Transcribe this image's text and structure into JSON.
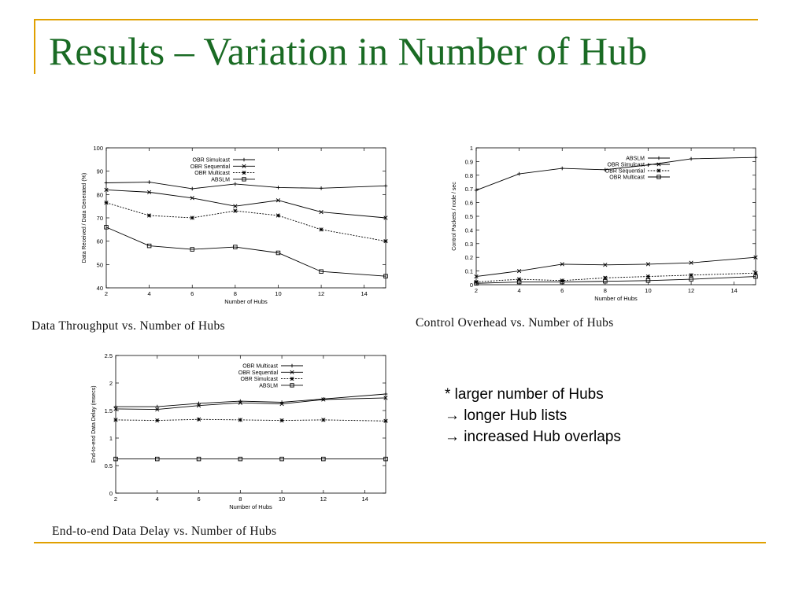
{
  "slide": {
    "title": "Results – Variation in Number of Hub",
    "notes": [
      "* larger number of Hubs",
      "→ longer Hub lists",
      "→ increased Hub overlaps"
    ]
  },
  "chart_data": [
    {
      "type": "line",
      "caption": "Data Throughput vs. Number of Hubs",
      "xlabel": "Number of Hubs",
      "ylabel": "Data Received / Data Generated (%)",
      "xlim": [
        2,
        15
      ],
      "ylim": [
        40,
        100
      ],
      "xticks": [
        "2",
        "4",
        "6",
        "8",
        "10",
        "12",
        "14"
      ],
      "yticks": [
        "40",
        "50",
        "60",
        "70",
        "80",
        "90",
        "100"
      ],
      "legend_position": "top-right",
      "x": [
        2,
        4,
        6,
        8,
        10,
        12,
        15
      ],
      "series": [
        {
          "name": "OBR Simulcast",
          "marker": "plus",
          "dash": "solid",
          "values": [
            85,
            85.3,
            82.5,
            84.5,
            83,
            82.7,
            83.7
          ]
        },
        {
          "name": "OBR Sequential",
          "marker": "x",
          "dash": "solid",
          "values": [
            82,
            81,
            78.5,
            75,
            77.5,
            72.5,
            70
          ]
        },
        {
          "name": "OBR Multicast",
          "marker": "star",
          "dash": "dotted",
          "values": [
            76.5,
            71,
            70,
            73,
            71,
            65,
            60
          ]
        },
        {
          "name": "ABSLM",
          "marker": "square",
          "dash": "solid",
          "values": [
            66,
            58,
            56.5,
            57.5,
            55,
            47,
            45
          ]
        }
      ]
    },
    {
      "type": "line",
      "caption": "Control Overhead vs. Number of Hubs",
      "xlabel": "Number of Hubs",
      "ylabel": "Control Packets / node / sec",
      "xlim": [
        2,
        15
      ],
      "ylim": [
        0,
        1
      ],
      "xticks": [
        "2",
        "4",
        "6",
        "8",
        "10",
        "12",
        "14"
      ],
      "yticks": [
        "0",
        "0.1",
        "0.2",
        "0.3",
        "0.4",
        "0.5",
        "0.6",
        "0.7",
        "0.8",
        "0.9",
        "1"
      ],
      "legend_position": "top-right",
      "x": [
        2,
        4,
        6,
        8,
        10,
        12,
        15
      ],
      "series": [
        {
          "name": "ABSLM",
          "marker": "plus",
          "dash": "solid",
          "values": [
            0.69,
            0.81,
            0.85,
            0.84,
            0.875,
            0.92,
            0.93
          ]
        },
        {
          "name": "OBR Simulcast",
          "marker": "x",
          "dash": "solid",
          "values": [
            0.06,
            0.1,
            0.15,
            0.145,
            0.15,
            0.16,
            0.2
          ]
        },
        {
          "name": "OBR Sequential",
          "marker": "star",
          "dash": "dotted",
          "values": [
            0.02,
            0.04,
            0.03,
            0.05,
            0.06,
            0.07,
            0.085
          ]
        },
        {
          "name": "OBR Multicast",
          "marker": "square",
          "dash": "solid",
          "values": [
            0.01,
            0.02,
            0.02,
            0.025,
            0.03,
            0.04,
            0.06
          ]
        }
      ]
    },
    {
      "type": "line",
      "caption": "End-to-end Data Delay vs. Number of Hubs",
      "xlabel": "Number of Hubs",
      "ylabel": "End-to-end Data Delay (msecs)",
      "xlim": [
        2,
        15
      ],
      "ylim": [
        0,
        2.5
      ],
      "xticks": [
        "2",
        "4",
        "6",
        "8",
        "10",
        "12",
        "14"
      ],
      "yticks": [
        "0",
        "0.5",
        "1",
        "1.5",
        "2",
        "2.5"
      ],
      "legend_position": "top-right",
      "x": [
        2,
        4,
        6,
        8,
        10,
        12,
        15
      ],
      "series": [
        {
          "name": "OBR Multicast",
          "marker": "plus",
          "dash": "solid",
          "values": [
            1.57,
            1.57,
            1.63,
            1.67,
            1.65,
            1.71,
            1.8
          ]
        },
        {
          "name": "OBR Sequential",
          "marker": "x",
          "dash": "solid",
          "values": [
            1.53,
            1.52,
            1.59,
            1.64,
            1.62,
            1.7,
            1.73
          ]
        },
        {
          "name": "OBR Simulcast",
          "marker": "star",
          "dash": "dotted",
          "values": [
            1.33,
            1.32,
            1.34,
            1.33,
            1.32,
            1.33,
            1.31
          ]
        },
        {
          "name": "ABSLM",
          "marker": "square",
          "dash": "solid",
          "values": [
            0.62,
            0.62,
            0.62,
            0.62,
            0.62,
            0.62,
            0.62
          ]
        }
      ]
    }
  ]
}
